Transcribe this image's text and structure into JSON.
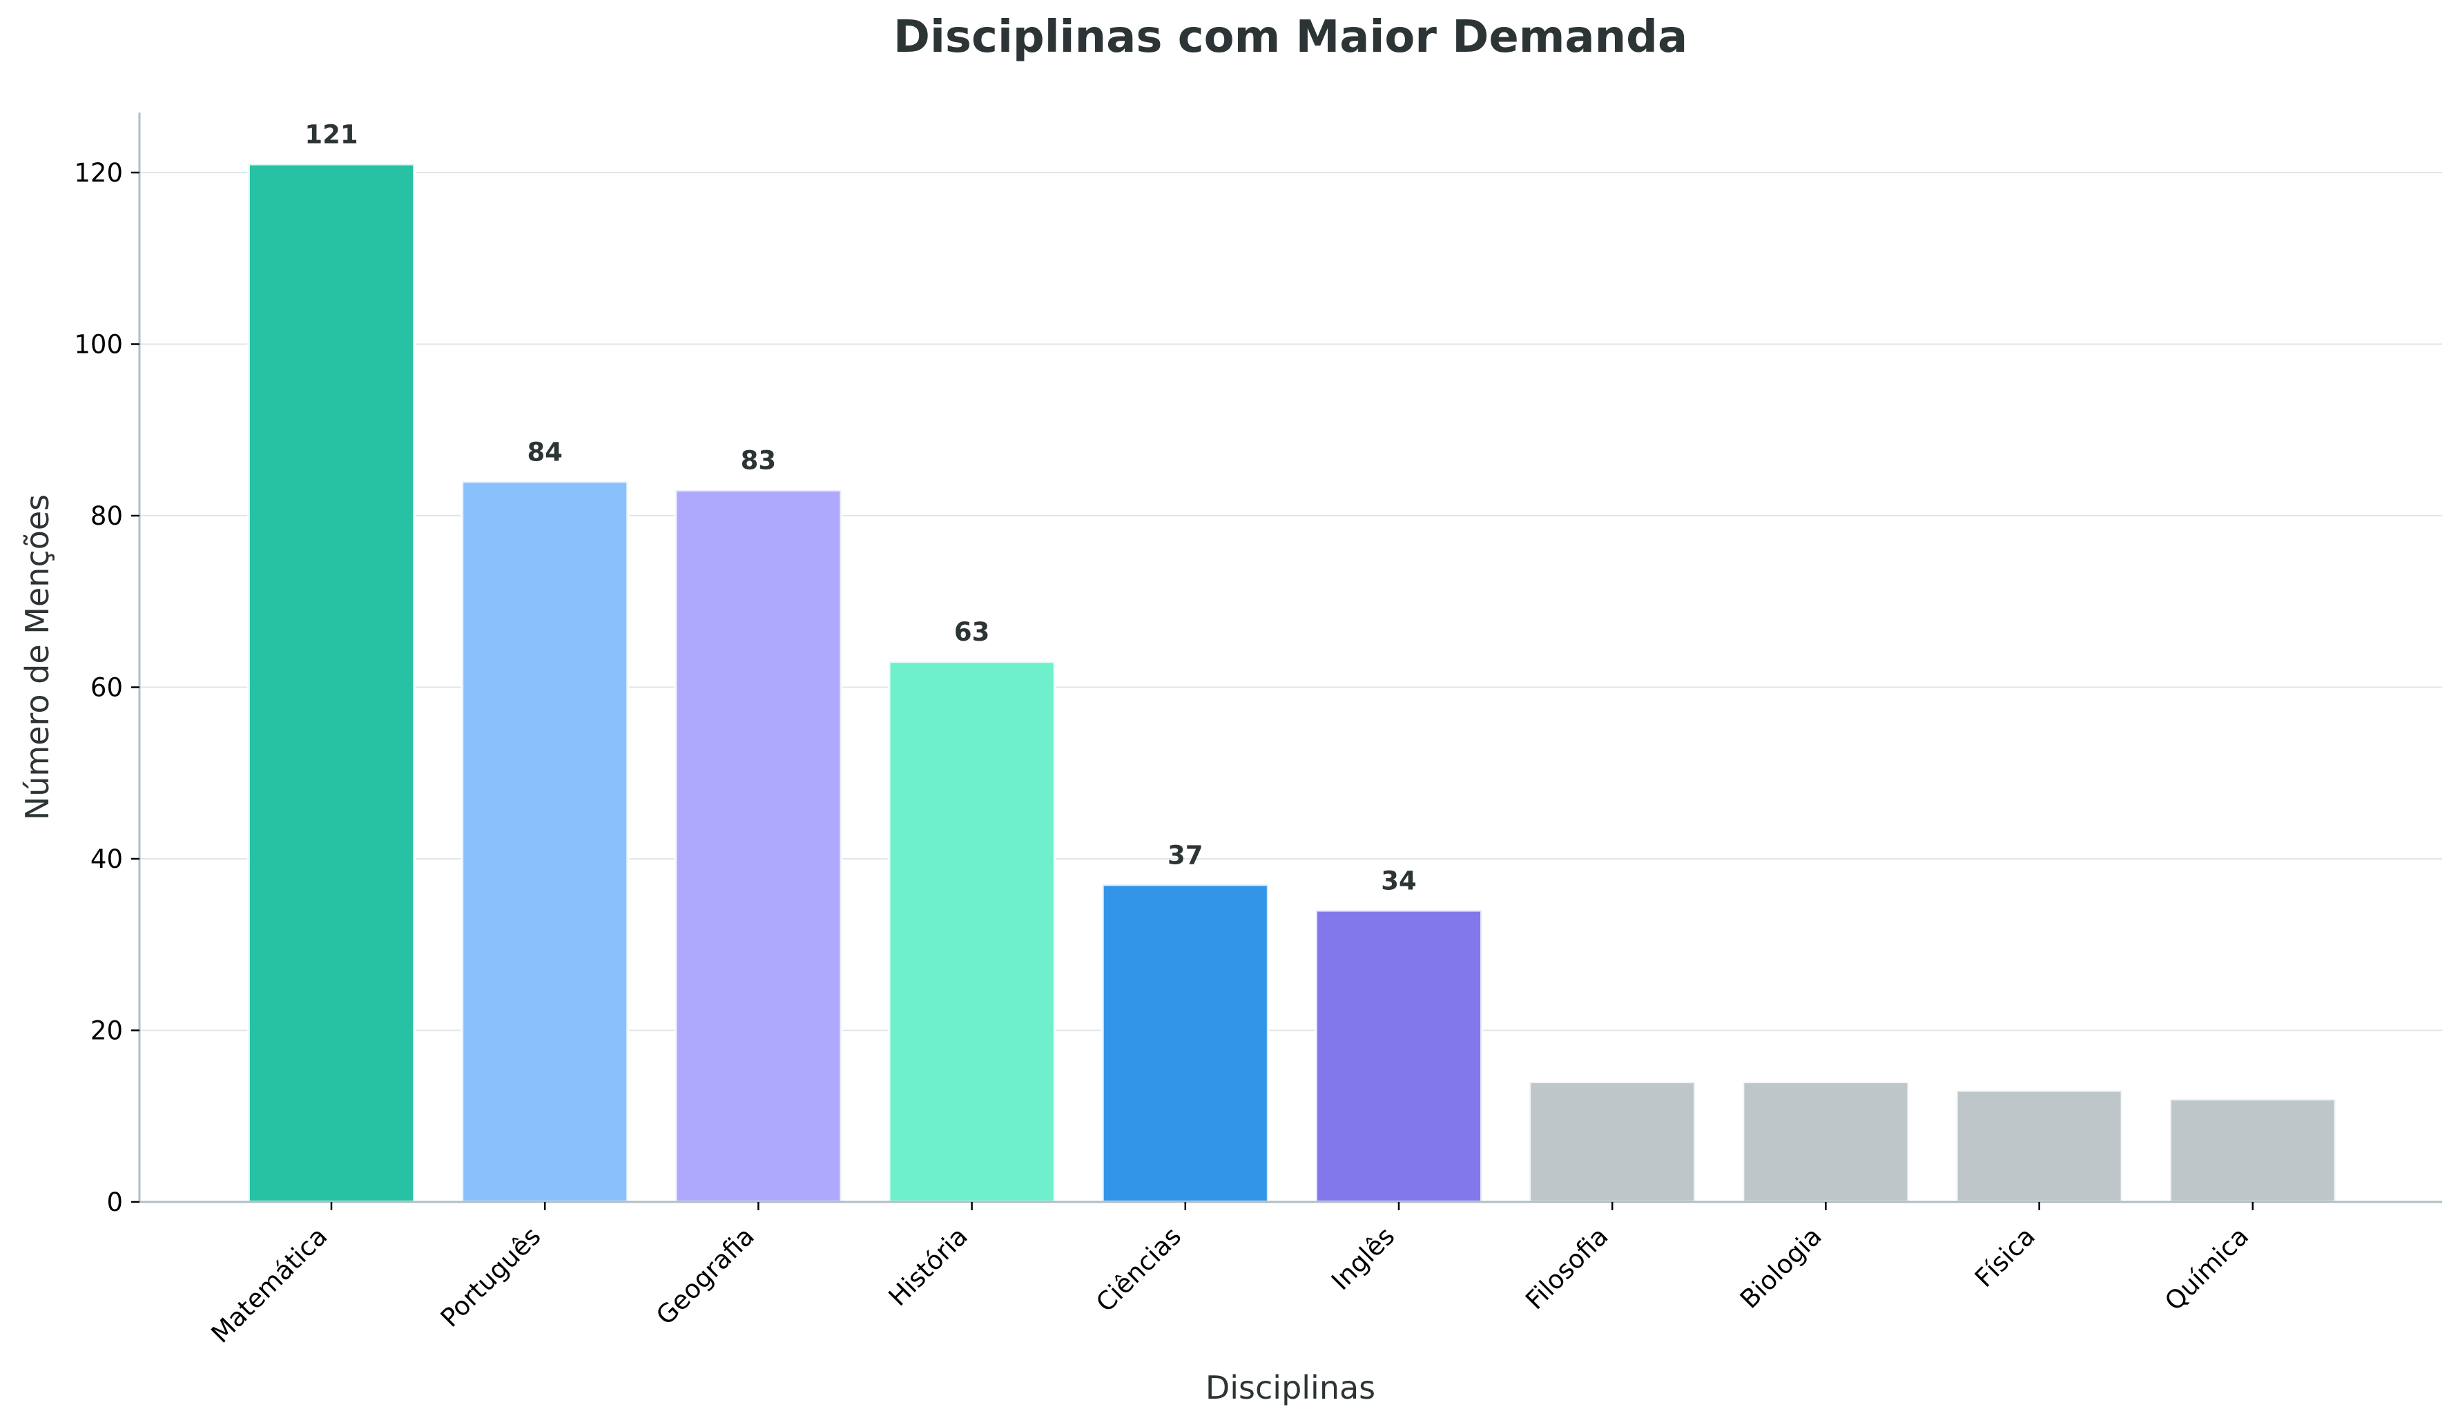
{
  "chart_data": {
    "type": "bar",
    "title": "Disciplinas com Maior Demanda",
    "xlabel": "Disciplinas",
    "ylabel": "Número de Menções",
    "categories": [
      "Matemática",
      "Português",
      "Geografia",
      "História",
      "Ciências",
      "Inglês",
      "Filosofia",
      "Biologia",
      "Física",
      "Química"
    ],
    "values": [
      121,
      84,
      83,
      63,
      37,
      34,
      14,
      14,
      13,
      12
    ],
    "value_labels": [
      "121",
      "84",
      "83",
      "63",
      "37",
      "34",
      "",
      "",
      "",
      ""
    ],
    "colors": [
      "#26c2a3",
      "#8ac1fd",
      "#aea9fd",
      "#6ef0cd",
      "#3395e8",
      "#8278ec",
      "#bec6ca",
      "#bec6ca",
      "#bec6ca",
      "#bec6ca"
    ],
    "ylim": [
      0,
      127
    ],
    "yticks": [
      0,
      20,
      40,
      60,
      80,
      100,
      120
    ],
    "ytick_labels": [
      "0",
      "20",
      "40",
      "60",
      "80",
      "100",
      "120"
    ],
    "grid": "horizontal"
  }
}
